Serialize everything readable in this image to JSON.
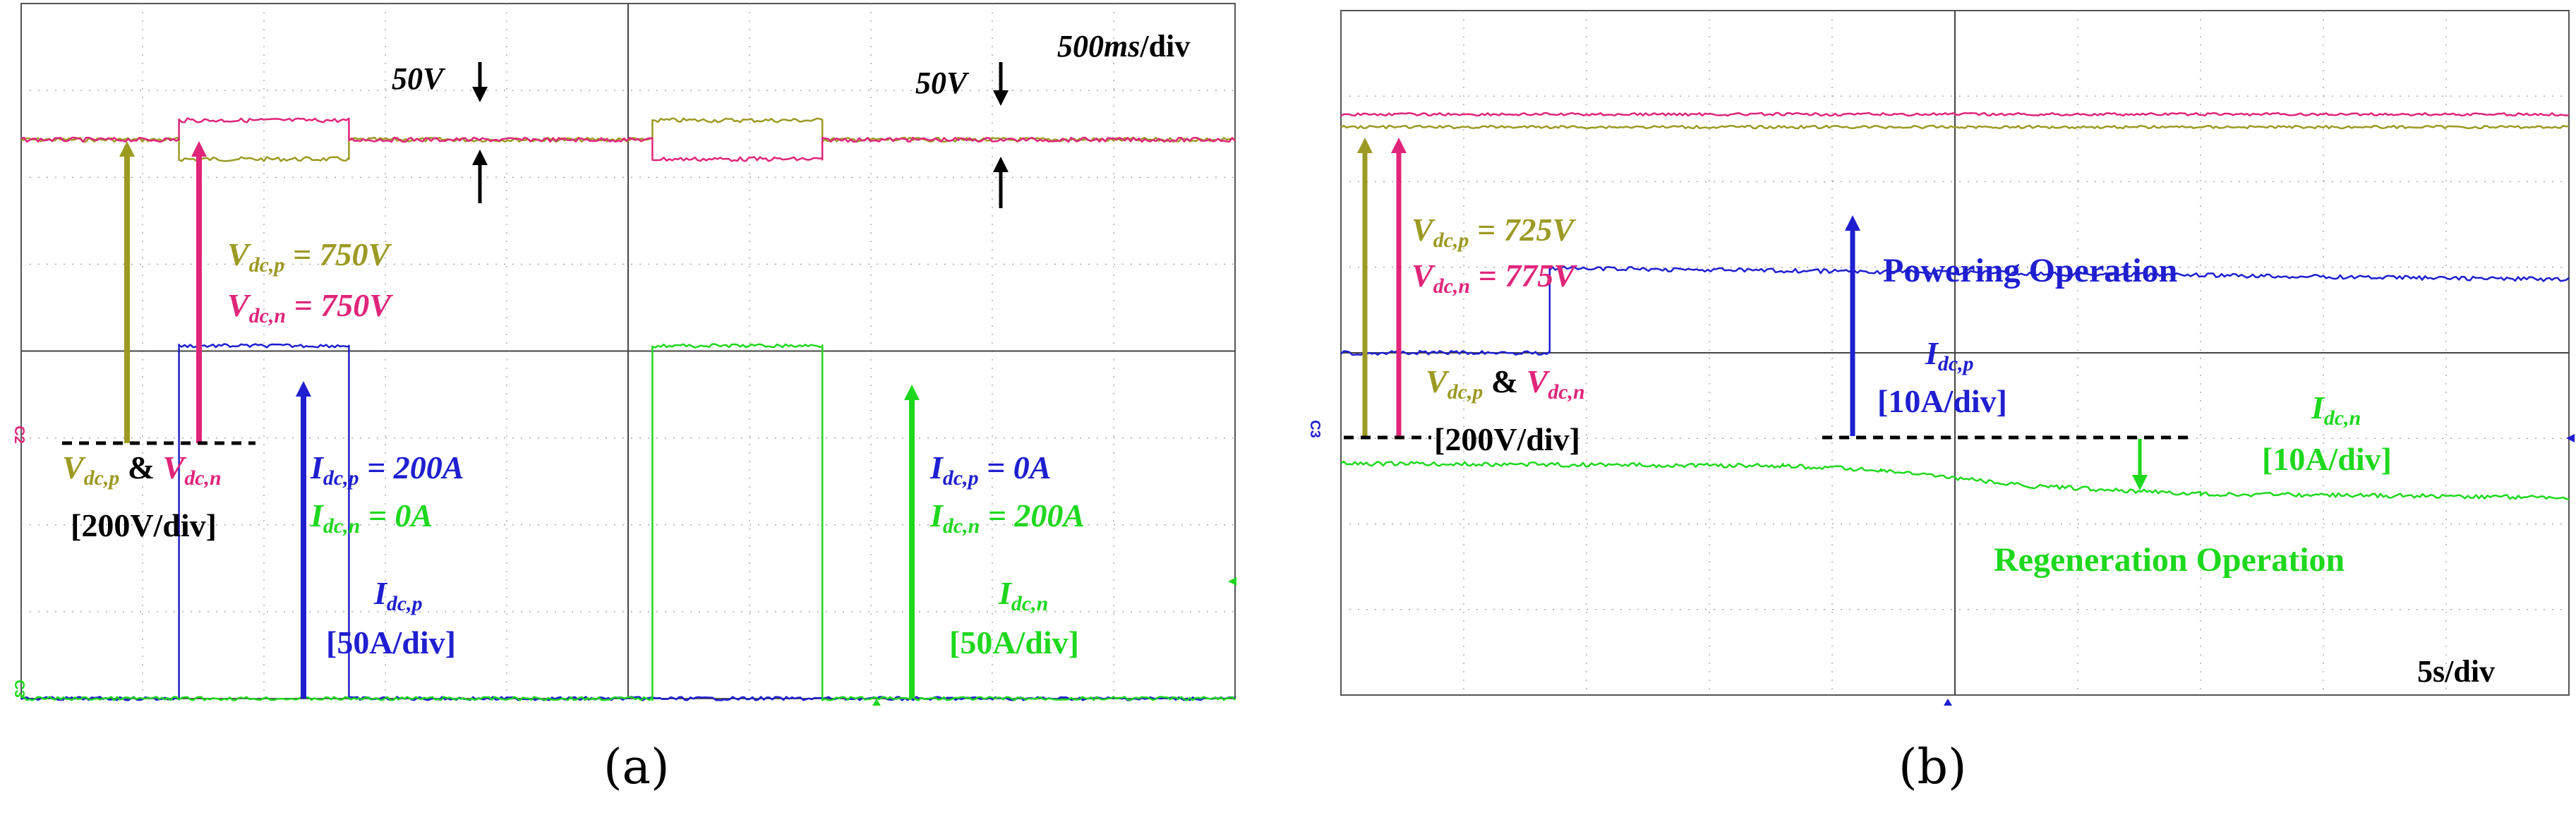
{
  "colors": {
    "vdcp": "#9c9a23",
    "vdcn": "#e0257a",
    "idcp": "#1f1fd0",
    "idcn": "#1ed81e",
    "black": "#000000",
    "grid": "#7a7a7a"
  },
  "panel_a": {
    "caption": "(a)",
    "timebase": "500ms/div",
    "timebase_italic": "500ms",
    "timebase_rest": "/div",
    "step_label_1": "50V",
    "step_label_2": "50V",
    "vdcp_eq": "V",
    "vdcp_sub": "dc,p",
    "vdcp_val": " = 750V",
    "vdcn_eq": "V",
    "vdcn_sub": "dc,n",
    "vdcn_val": " = 750V",
    "v_scale_a": "V",
    "v_scale_a_sub1": "dc,p",
    "v_scale_amp": " & ",
    "v_scale_a_sub2": "dc,n",
    "v_scale_div": "[200V/div]",
    "first_step_idcp": " = 200A",
    "first_step_idcn": " = 0A",
    "second_step_idcp": " = 0A",
    "second_step_idcn": " = 200A",
    "idcp_scale": "[50A/div]",
    "idcn_scale": "[50A/div]",
    "ch_label_c2": "C2",
    "ch_label_c3": "C3"
  },
  "panel_b": {
    "caption": "(b)",
    "timebase": "5s/div",
    "vdcp_val": " = 725V",
    "vdcn_val": " = 775V",
    "v_scale_div": "[200V/div]",
    "powering": "Powering Operation",
    "regeneration": "Regeneration Operation",
    "idcp_scale": "[10A/div]",
    "idcn_scale": "[10A/div]",
    "ch_label_c3": "C3"
  },
  "chart_data": [
    {
      "type": "line",
      "title": "500ms/div",
      "x_unit": "s",
      "xlim": [
        0,
        5
      ],
      "series": [
        {
          "name": "Vdc,p",
          "unit": "V",
          "x": [
            0,
            0.65,
            0.65,
            1.35,
            1.35,
            2.6,
            2.6,
            3.3,
            3.3,
            3.65,
            5
          ],
          "values": [
            750,
            750,
            700,
            700,
            750,
            750,
            800,
            800,
            750,
            750,
            750
          ]
        },
        {
          "name": "Vdc,n",
          "unit": "V",
          "x": [
            0,
            0.65,
            0.65,
            1.35,
            1.35,
            2.6,
            2.6,
            3.3,
            3.3,
            3.65,
            5
          ],
          "values": [
            750,
            750,
            800,
            800,
            750,
            750,
            700,
            700,
            750,
            750,
            750
          ]
        },
        {
          "name": "Idc,p",
          "unit": "A",
          "x": [
            0,
            0.65,
            0.65,
            1.35,
            1.35,
            5
          ],
          "values": [
            0,
            0,
            200,
            200,
            0,
            0
          ]
        },
        {
          "name": "Idc,n",
          "unit": "A",
          "x": [
            0,
            2.6,
            2.6,
            3.3,
            3.3,
            5
          ],
          "values": [
            0,
            0,
            200,
            200,
            0,
            0
          ]
        }
      ],
      "annotations": [
        "Idc,p = 200A",
        "Idc,n = 0A",
        "Idc,p = 0A",
        "Idc,n = 200A",
        "50V",
        "50V"
      ]
    },
    {
      "type": "line",
      "title": "5s/div",
      "x_unit": "s",
      "xlim": [
        0,
        50
      ],
      "series": [
        {
          "name": "Vdc,p",
          "unit": "V",
          "x": [
            0,
            50
          ],
          "values": [
            725,
            725
          ]
        },
        {
          "name": "Vdc,n",
          "unit": "V",
          "x": [
            0,
            50
          ],
          "values": [
            775,
            775
          ]
        },
        {
          "name": "Idc,p",
          "unit": "A",
          "x": [
            0,
            8.5,
            8.5,
            50
          ],
          "values": [
            7.5,
            7.5,
            15,
            14
          ]
        },
        {
          "name": "Idc,n",
          "unit": "A",
          "x": [
            0,
            18,
            22,
            28,
            35,
            50
          ],
          "values": [
            -2.3,
            -2.5,
            -2.9,
            -4.3,
            -5.0,
            -5.3
          ]
        }
      ],
      "annotations": [
        "Powering Operation",
        "Regeneration Operation"
      ]
    }
  ]
}
